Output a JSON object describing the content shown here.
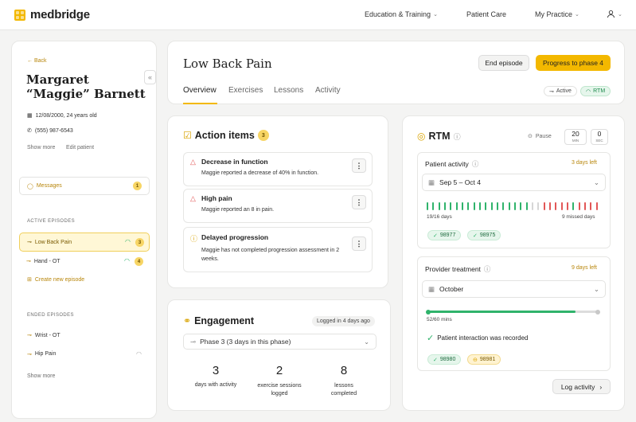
{
  "brand": {
    "name": "medbridge"
  },
  "nav": {
    "education": "Education & Training",
    "patient_care": "Patient Care",
    "my_practice": "My Practice"
  },
  "sidebar": {
    "back": "Back",
    "patient_name": "Margaret “Maggie” Barnett",
    "dob": "12/08/2000, 24 years old",
    "phone": "(555) 987-6543",
    "show_more": "Show more",
    "edit_patient": "Edit patient",
    "messages": "Messages",
    "messages_count": "1",
    "active_header": "ACTIVE EPISODES",
    "active": [
      {
        "label": "Low Back Pain",
        "count": "3"
      },
      {
        "label": "Hand - OT",
        "count": "4"
      }
    ],
    "create_episode": "Create new episode",
    "ended_header": "ENDED EPISODES",
    "ended": [
      {
        "label": "Wrist - OT"
      },
      {
        "label": "Hip Pain"
      }
    ],
    "show_more_bottom": "Show more"
  },
  "episode": {
    "title": "Low Back Pain",
    "end_button": "End episode",
    "progress_button": "Progress to phase 4",
    "tabs": [
      "Overview",
      "Exercises",
      "Lessons",
      "Activity"
    ],
    "status_active": "Active",
    "status_rtm": "RTM"
  },
  "action_items": {
    "title": "Action items",
    "count": "3",
    "items": [
      {
        "title": "Decrease in function",
        "desc": "Maggie reported a decrease of 40% in function."
      },
      {
        "title": "High pain",
        "desc": "Maggie reported an 8 in pain."
      },
      {
        "title": "Delayed progression",
        "desc": "Maggie has not completed progression assessment in 2 weeks."
      }
    ]
  },
  "engagement": {
    "title": "Engagement",
    "logged": "Logged in 4 days ago",
    "phase": "Phase 3  (3 days in this phase)",
    "stats": [
      {
        "value": "3",
        "label": "days with activity"
      },
      {
        "value": "2",
        "label": "exercise sessions logged"
      },
      {
        "value": "8",
        "label": "lessons completed"
      }
    ]
  },
  "rtm": {
    "title": "RTM",
    "pause": "Pause",
    "timer_min": "20",
    "timer_min_label": "MIN",
    "timer_sec": "0",
    "timer_sec_label": "SEC",
    "patient_activity": {
      "title": "Patient activity",
      "days_left": "3 days left",
      "range": "Sep 5 – Oct 4",
      "days": "19/16 days",
      "missed": "9 missed days",
      "codes": [
        "98977",
        "98975"
      ]
    },
    "provider": {
      "title": "Provider treatment",
      "days_left": "9 days left",
      "month": "October",
      "mins": "52/60 mins",
      "progress": 0.867,
      "interaction": "Patient interaction was recorded",
      "codes": [
        "98980",
        "98981"
      ]
    },
    "log_activity": "Log activity"
  },
  "colors": {
    "accent": "#f3b800",
    "amber_text": "#b8860b",
    "green": "#2fb36b",
    "red": "#e25757",
    "grey": "#d6d6d6"
  }
}
